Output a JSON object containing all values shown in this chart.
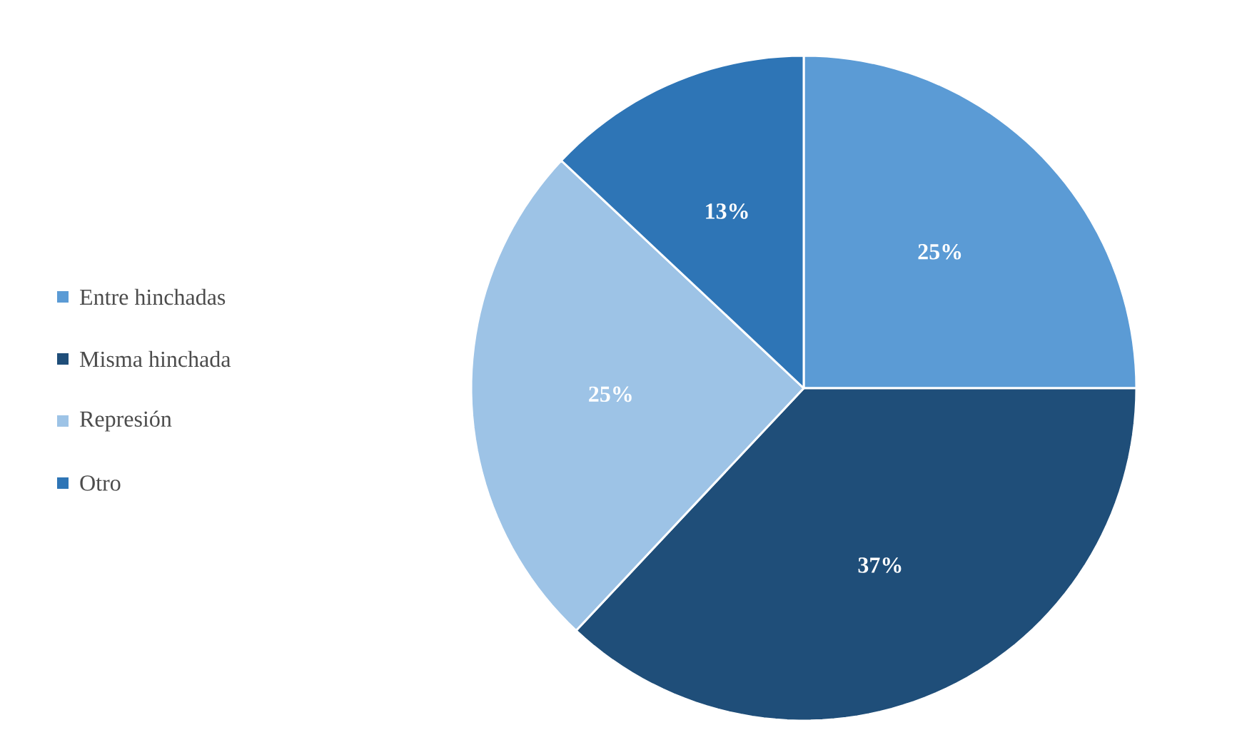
{
  "chart_data": {
    "type": "pie",
    "categories": [
      "Entre hinchadas",
      "Misma hinchada",
      "Represión",
      "Otro"
    ],
    "values": [
      25,
      37,
      25,
      13
    ],
    "value_labels": [
      "25%",
      "37%",
      "25%",
      "13%"
    ],
    "colors": [
      "#5b9bd5",
      "#1f4e79",
      "#9dc3e6",
      "#2e75b6"
    ],
    "legend": "left"
  }
}
